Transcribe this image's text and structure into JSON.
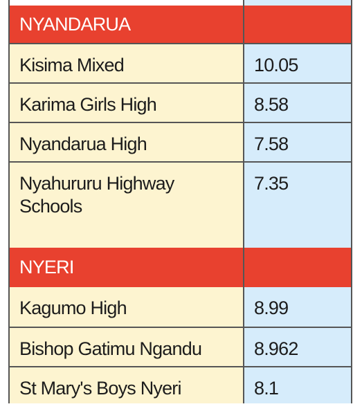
{
  "sections": [
    {
      "name": "NYANDARUA",
      "schools": [
        {
          "name": "Kisima Mixed",
          "score": "10.05"
        },
        {
          "name": "Karima Girls High",
          "score": "8.58"
        },
        {
          "name": "Nyandarua High",
          "score": "7.58"
        },
        {
          "name": "Nyahururu Highway Schools",
          "score": "7.35"
        }
      ]
    },
    {
      "name": "NYERI",
      "schools": [
        {
          "name": "Kagumo High",
          "score": "8.99"
        },
        {
          "name": "Bishop Gatimu Ngandu",
          "score": "8.962"
        },
        {
          "name": "St Mary's Boys Nyeri",
          "score": "8.1"
        }
      ]
    }
  ],
  "colors": {
    "header_bg": "#e8412f",
    "name_cell_bg": "#fdf4d0",
    "score_cell_bg": "#d6ecfb"
  }
}
